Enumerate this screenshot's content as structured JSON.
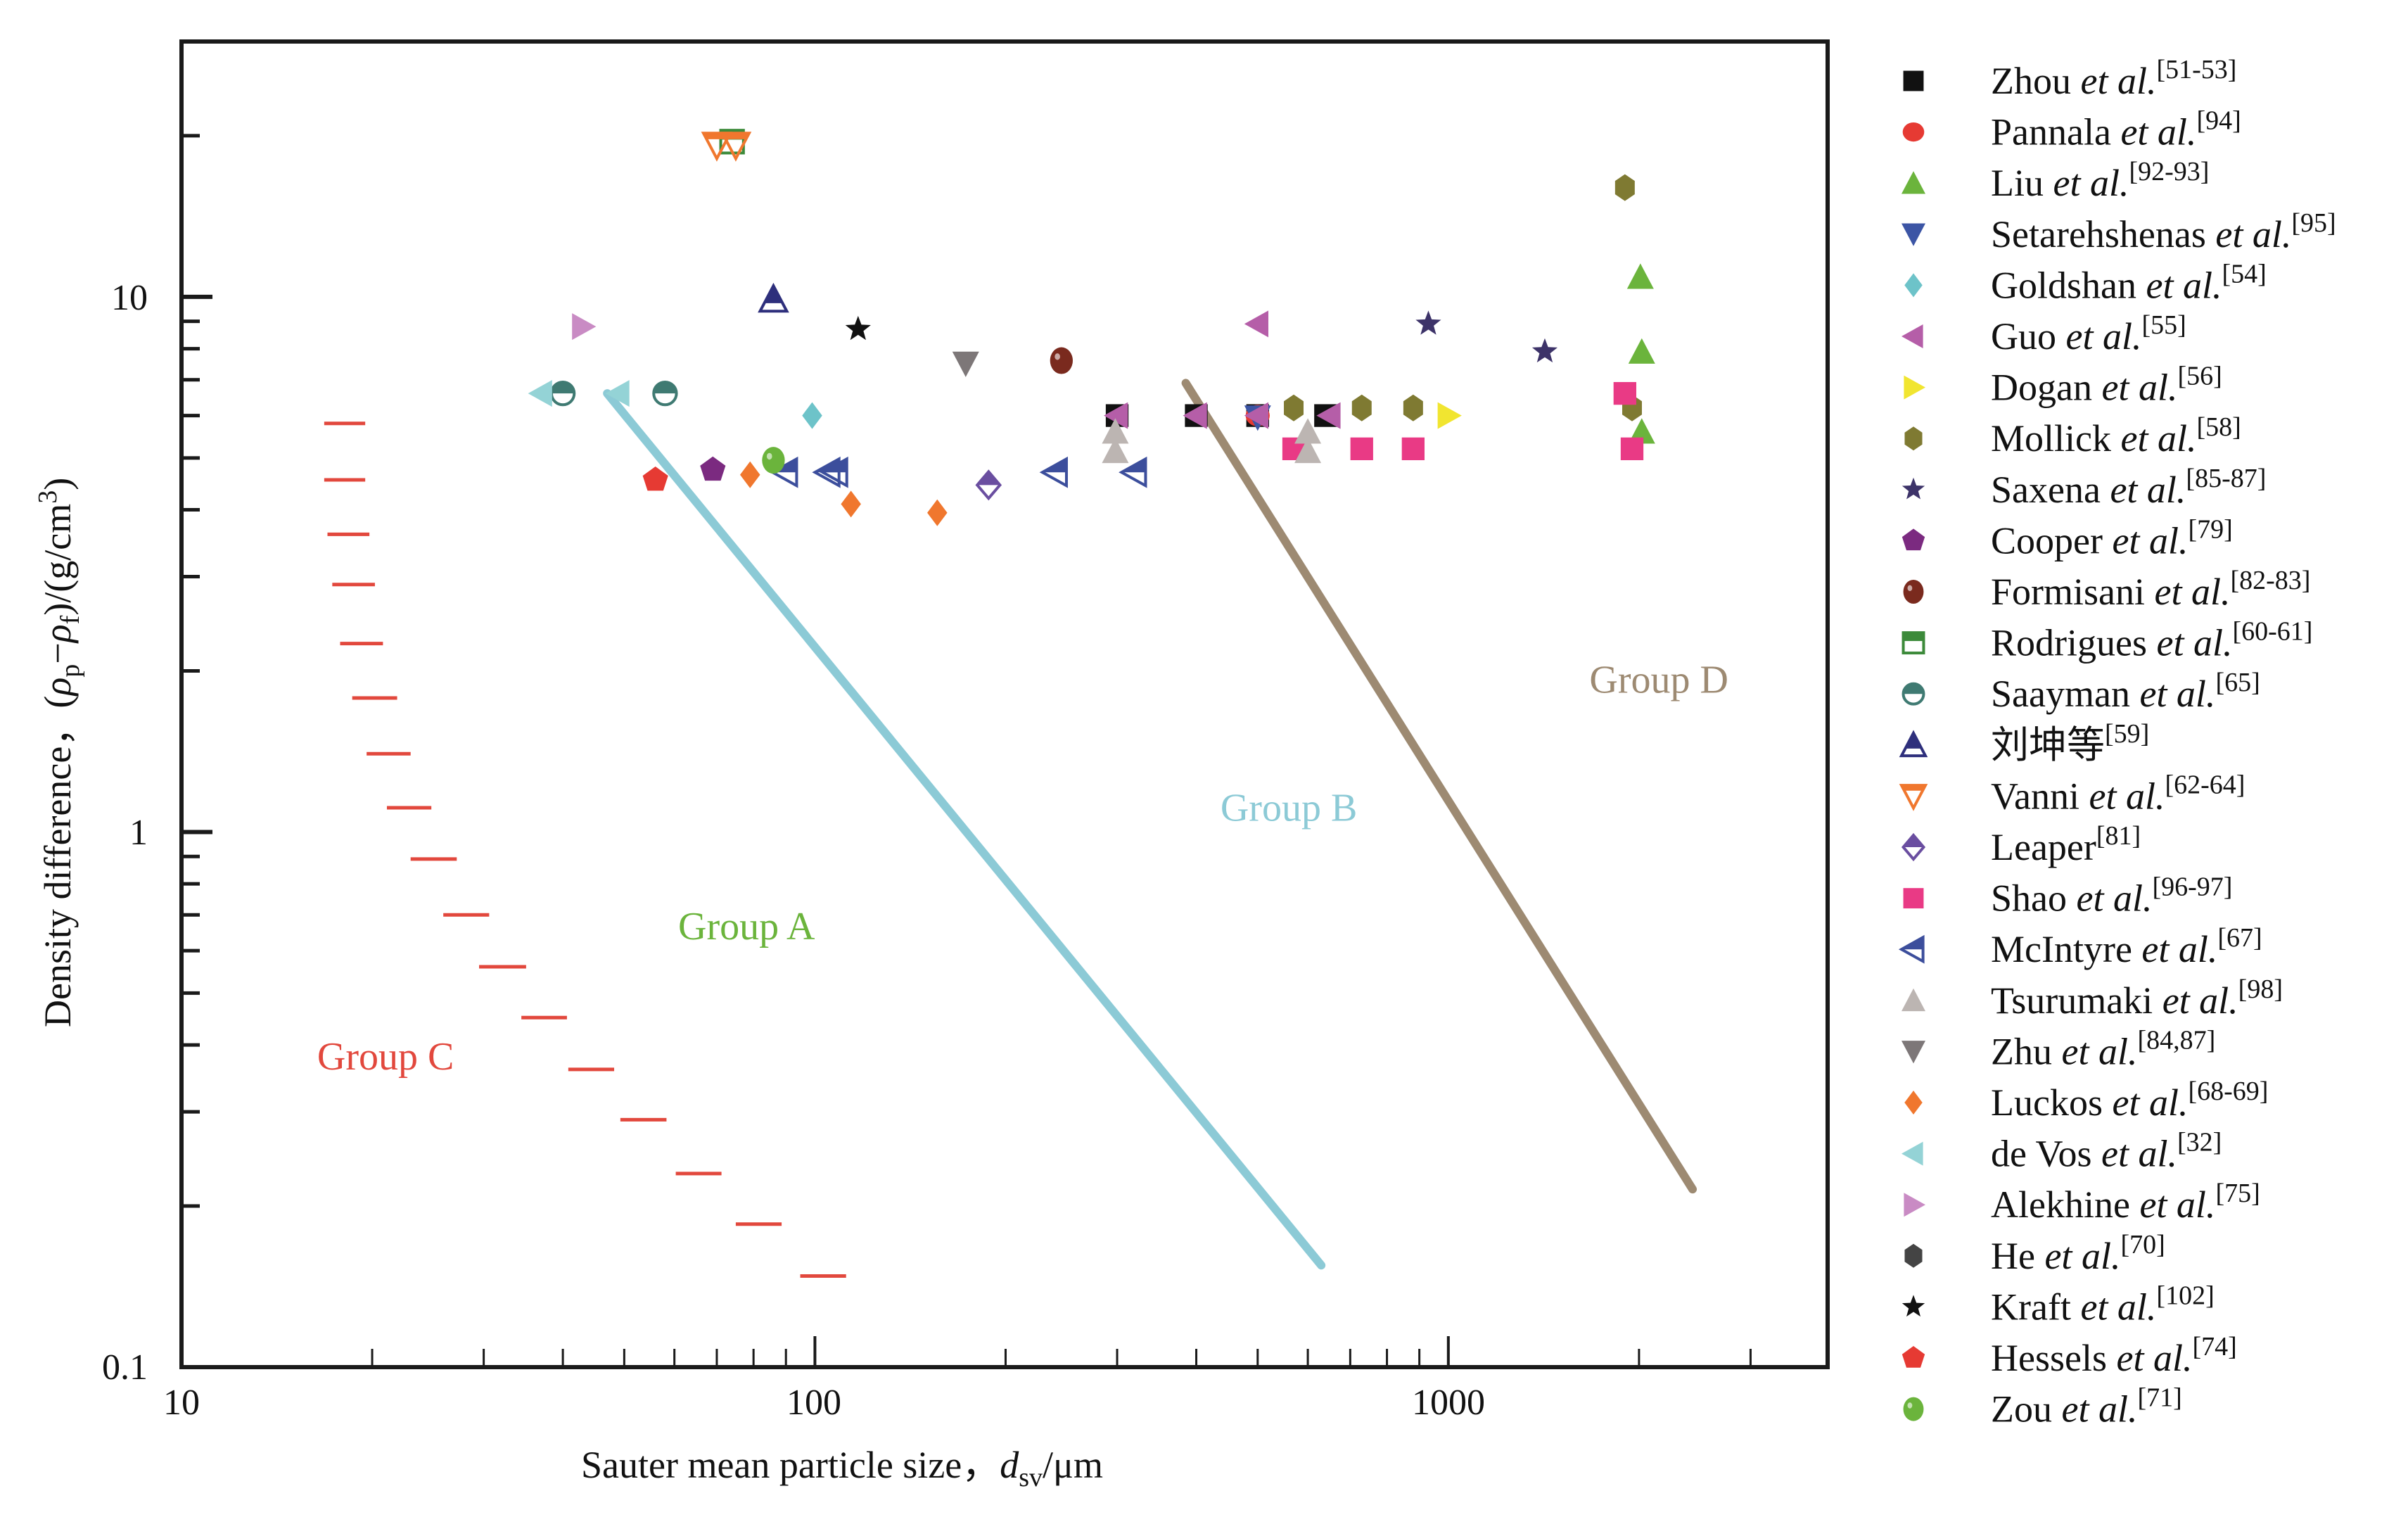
{
  "chart_data": {
    "type": "scatter",
    "title": "",
    "xlabel": "Sauter mean particle size, d_sv/μm",
    "xlabel_parts": {
      "prefix": "Sauter mean particle size，",
      "var": "d",
      "sub": "sv",
      "unit": "/μm"
    },
    "ylabel": "Density difference, (ρp−ρf)/(g/cm³)",
    "ylabel_parts": {
      "prefix": "Density difference，(",
      "rho": "ρ",
      "sub_p": "p",
      "minus": "−",
      "sub_f": "f",
      "unit": ")/(g/cm",
      "sup": "3",
      "close": ")"
    },
    "xscale": "log",
    "yscale": "log",
    "xlim": [
      10,
      3970
    ],
    "ylim": [
      0.1,
      30
    ],
    "xticks": [
      10,
      100,
      1000
    ],
    "xtick_labels": [
      "10",
      "100",
      "1000"
    ],
    "yticks": [
      0.1,
      1,
      10
    ],
    "ytick_labels": [
      "0.1",
      "1",
      "10"
    ],
    "grid": false,
    "legend_position": "right-outside",
    "group_labels": [
      {
        "text": "Group A",
        "x": 78,
        "y": 0.63,
        "color": "#6bb43c"
      },
      {
        "text": "Group B",
        "x": 560,
        "y": 1.05,
        "color": "#8ccad6"
      },
      {
        "text": "Group C",
        "x": 21,
        "y": 0.36,
        "color": "#e2483d"
      },
      {
        "text": "Group D",
        "x": 2150,
        "y": 1.82,
        "color": "#9d8a72"
      }
    ],
    "boundary_lines": [
      {
        "name": "A-B boundary",
        "color": "#8ccad6",
        "points": [
          [
            47,
            6.6
          ],
          [
            630,
            0.155
          ]
        ]
      },
      {
        "name": "B-D boundary",
        "color": "#9d8a72",
        "points": [
          [
            385,
            6.9
          ],
          [
            2430,
            0.215
          ]
        ]
      }
    ],
    "group_c_boundary": {
      "color": "#e2483d",
      "segments": [
        [
          16.8,
          19.5,
          5.8
        ],
        [
          16.8,
          19.5,
          4.55
        ],
        [
          17.0,
          19.8,
          3.6
        ],
        [
          17.3,
          20.2,
          2.9
        ],
        [
          17.8,
          20.8,
          2.25
        ],
        [
          18.6,
          21.9,
          1.78
        ],
        [
          19.6,
          23.0,
          1.4
        ],
        [
          21.1,
          24.8,
          1.11
        ],
        [
          23.0,
          27.2,
          0.89
        ],
        [
          25.9,
          30.6,
          0.7
        ],
        [
          29.5,
          35.0,
          0.56
        ],
        [
          34.4,
          40.6,
          0.45
        ],
        [
          40.8,
          48.2,
          0.36
        ],
        [
          49.3,
          58.3,
          0.29
        ],
        [
          60.3,
          71.2,
          0.23
        ],
        [
          75.0,
          88.6,
          0.185
        ],
        [
          94.8,
          112,
          0.148
        ]
      ]
    },
    "series": [
      {
        "name": "Zhou et al.",
        "ref": "[51-53]",
        "marker": "square",
        "color": "#111111",
        "points": [
          [
            300,
            6.0
          ],
          [
            400,
            6.0
          ],
          [
            500,
            6.0
          ],
          [
            640,
            6.0
          ]
        ]
      },
      {
        "name": "Pannala et al.",
        "ref": "[94]",
        "marker": "circle",
        "color": "#e63a33",
        "points": [
          [
            500,
            6.0
          ]
        ]
      },
      {
        "name": "Liu et al.",
        "ref": "[92-93]",
        "marker": "triangle-up",
        "color": "#6bb43c",
        "points": [
          [
            2010,
            10.9
          ],
          [
            2020,
            7.9
          ],
          [
            2020,
            5.6
          ]
        ]
      },
      {
        "name": "Setarehshenas et al.",
        "ref": "[95]",
        "marker": "triangle-down",
        "color": "#3c55a5",
        "points": [
          [
            500,
            5.95
          ]
        ]
      },
      {
        "name": "Goldshan et al.",
        "ref": "[54]",
        "marker": "diamond",
        "color": "#6dc3c9",
        "points": [
          [
            99,
            6.0
          ]
        ]
      },
      {
        "name": "Guo et al.",
        "ref": "[55]",
        "marker": "triangle-left",
        "color": "#b55ea8",
        "points": [
          [
            300,
            6.0
          ],
          [
            400,
            6.0
          ],
          [
            500,
            6.0
          ],
          [
            650,
            6.0
          ],
          [
            500,
            8.9
          ]
        ]
      },
      {
        "name": "Dogan et al.",
        "ref": "[56]",
        "marker": "triangle-right",
        "color": "#f1e530",
        "points": [
          [
            1000,
            6.0
          ]
        ]
      },
      {
        "name": "Mollick et al.",
        "ref": "[58]",
        "marker": "hexagon",
        "color": "#7f7a32",
        "points": [
          [
            570,
            6.2
          ],
          [
            730,
            6.2
          ],
          [
            880,
            6.2
          ],
          [
            1900,
            16.0
          ],
          [
            1950,
            6.2
          ]
        ]
      },
      {
        "name": "Saxena et al.",
        "ref": "[85-87]",
        "marker": "star",
        "color": "#3d3369",
        "points": [
          [
            930,
            8.9
          ],
          [
            1420,
            7.9
          ]
        ]
      },
      {
        "name": "Cooper et al.",
        "ref": "[79]",
        "marker": "pentagon",
        "color": "#7b2a80",
        "points": [
          [
            69,
            4.75
          ]
        ]
      },
      {
        "name": "Formisani et al.",
        "ref": "[82-83]",
        "marker": "ball",
        "color": "#7a2a1e",
        "points": [
          [
            245,
            7.6
          ]
        ]
      },
      {
        "name": "Rodrigues et al.",
        "ref": "[60-61]",
        "marker": "square-open-bottom",
        "color": "#3c8a3a",
        "points": [
          [
            74,
            19.5
          ]
        ]
      },
      {
        "name": "Saayman et al.",
        "ref": "[65]",
        "marker": "circle-half",
        "color": "#3f7a72",
        "points": [
          [
            40,
            6.6
          ],
          [
            58,
            6.6
          ]
        ]
      },
      {
        "name": "刘坤等",
        "ref": "[59]",
        "marker": "triangle-up-half",
        "color": "#2e2f7c",
        "points": [
          [
            86,
            9.9
          ]
        ]
      },
      {
        "name": "Vanni et al.",
        "ref": "[62-64]",
        "marker": "triangle-down-open",
        "color": "#f0772e",
        "points": [
          [
            70,
            19.2
          ],
          [
            75,
            19.2
          ]
        ]
      },
      {
        "name": "Leaper",
        "ref": "[81]",
        "marker": "diamond-half",
        "color": "#6a4ea0",
        "points": [
          [
            188,
            4.45
          ]
        ]
      },
      {
        "name": "Shao et al.",
        "ref": "[96-97]",
        "marker": "square",
        "color": "#e93a85",
        "points": [
          [
            570,
            5.2
          ],
          [
            730,
            5.2
          ],
          [
            880,
            5.2
          ],
          [
            1900,
            6.6
          ],
          [
            1950,
            5.2
          ]
        ]
      },
      {
        "name": "McIntyre et al.",
        "ref": "[67]",
        "marker": "triangle-left-half",
        "color": "#3c4e9c",
        "points": [
          [
            90,
            4.7
          ],
          [
            105,
            4.7
          ],
          [
            108,
            4.7
          ],
          [
            240,
            4.7
          ],
          [
            320,
            4.7
          ]
        ]
      },
      {
        "name": "Tsurumaki et al.",
        "ref": "[98]",
        "marker": "triangle-up",
        "color": "#bcb5b2",
        "points": [
          [
            298,
            5.6
          ],
          [
            298,
            5.15
          ],
          [
            600,
            5.6
          ],
          [
            600,
            5.15
          ]
        ]
      },
      {
        "name": "Zhu et al.",
        "ref": "[84,87]",
        "marker": "triangle-down",
        "color": "#7d7778",
        "points": [
          [
            173,
            7.5
          ]
        ]
      },
      {
        "name": "Luckos et al.",
        "ref": "[68-69]",
        "marker": "diamond",
        "color": "#f0772e",
        "points": [
          [
            79,
            4.65
          ],
          [
            114,
            4.1
          ],
          [
            156,
            3.95
          ]
        ]
      },
      {
        "name": "de Vos et al.",
        "ref": "[32]",
        "marker": "triangle-left",
        "color": "#94d3d6",
        "points": [
          [
            37,
            6.6
          ],
          [
            49,
            6.6
          ]
        ]
      },
      {
        "name": "Alekhine et al.",
        "ref": "[75]",
        "marker": "triangle-right",
        "color": "#c98bc4",
        "points": [
          [
            43,
            8.8
          ]
        ]
      },
      {
        "name": "He et al.",
        "ref": "[70]",
        "marker": "hexagon",
        "color": "#444444",
        "points": []
      },
      {
        "name": "Kraft et al.",
        "ref": "[102]",
        "marker": "star",
        "color": "#111111",
        "points": [
          [
            117,
            8.7
          ]
        ]
      },
      {
        "name": "Hessels et al.",
        "ref": "[74]",
        "marker": "pentagon",
        "color": "#e63a33",
        "points": [
          [
            56,
            4.55
          ]
        ]
      },
      {
        "name": "Zou et al.",
        "ref": "[71]",
        "marker": "ball",
        "color": "#6bb43c",
        "points": [
          [
            86,
            4.95
          ]
        ]
      }
    ]
  }
}
